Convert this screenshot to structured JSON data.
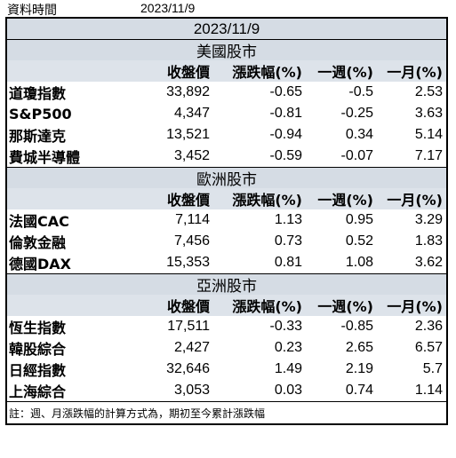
{
  "header": {
    "label": "資料時間",
    "date": "2023/11/9"
  },
  "title_date": "2023/11/9",
  "columns": [
    "收盤價",
    "漲跌幅(%)",
    "一週(%)",
    "一月(%)"
  ],
  "sections": [
    {
      "name": "美國股市",
      "rows": [
        {
          "name": "道瓊指數",
          "close": "33,892",
          "chg": "-0.65",
          "week": "-0.5",
          "month": "2.53"
        },
        {
          "name": "S&P500",
          "close": "4,347",
          "chg": "-0.81",
          "week": "-0.25",
          "month": "3.63"
        },
        {
          "name": "那斯達克",
          "close": "13,521",
          "chg": "-0.94",
          "week": "0.34",
          "month": "5.14"
        },
        {
          "name": "費城半導體",
          "close": "3,452",
          "chg": "-0.59",
          "week": "-0.07",
          "month": "7.17"
        }
      ]
    },
    {
      "name": "歐洲股市",
      "rows": [
        {
          "name": "法國CAC",
          "close": "7,114",
          "chg": "1.13",
          "week": "0.95",
          "month": "3.29"
        },
        {
          "name": "倫敦金融",
          "close": "7,456",
          "chg": "0.73",
          "week": "0.52",
          "month": "1.83"
        },
        {
          "name": "德國DAX",
          "close": "15,353",
          "chg": "0.81",
          "week": "1.08",
          "month": "3.62"
        }
      ]
    },
    {
      "name": "亞洲股市",
      "rows": [
        {
          "name": "恆生指數",
          "close": "17,511",
          "chg": "-0.33",
          "week": "-0.85",
          "month": "2.36"
        },
        {
          "name": "韓股綜合",
          "close": "2,427",
          "chg": "0.23",
          "week": "2.65",
          "month": "6.57"
        },
        {
          "name": "日經指數",
          "close": "32,646",
          "chg": "1.49",
          "week": "2.19",
          "month": "5.7"
        },
        {
          "name": "上海綜合",
          "close": "3,053",
          "chg": "0.03",
          "week": "0.74",
          "month": "1.14"
        }
      ]
    }
  ],
  "note": "註：週、月漲跌幅的計算方式為，期初至今累計漲跌幅",
  "colors": {
    "band_bg": "#d5dce4",
    "border": "#000000"
  }
}
